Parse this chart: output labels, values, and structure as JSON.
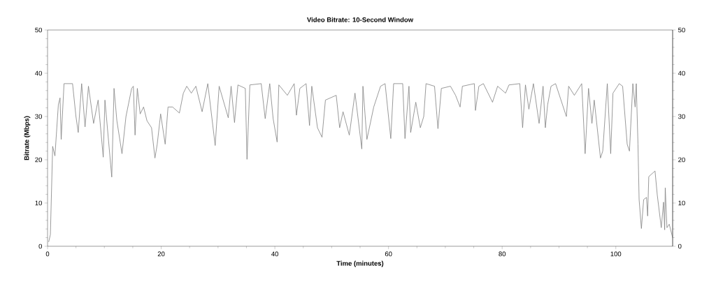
{
  "chart_data": {
    "type": "line",
    "title": "Video Bitrate: 10-Second Window",
    "xlabel": "Time (minutes)",
    "ylabel": "Bitrate (Mbps)",
    "xlim": [
      0,
      110
    ],
    "xticks": [
      0,
      20,
      40,
      60,
      80,
      100
    ],
    "ylim": [
      0,
      50
    ],
    "yticks": [
      0,
      10,
      20,
      30,
      40,
      50
    ],
    "y2lim": [
      0,
      50
    ],
    "y2ticks": [
      0,
      10,
      20,
      30,
      40,
      50
    ],
    "series": [
      {
        "color": "#808080",
        "x": [
          0.2,
          0.5,
          0.9,
          1.3,
          1.9,
          2.2,
          2.4,
          2.9,
          4.4,
          5.0,
          5.4,
          6.0,
          6.6,
          7.2,
          8.1,
          8.9,
          9.8,
          10.1,
          11.3,
          11.7,
          12.2,
          13.1,
          13.8,
          14.8,
          15.1,
          15.4,
          15.8,
          16.3,
          16.9,
          17.5,
          18.3,
          18.9,
          19.3,
          19.9,
          20.7,
          21.2,
          22.0,
          23.2,
          23.9,
          24.5,
          25.3,
          26.1,
          27.2,
          28.2,
          29.5,
          30.2,
          31.8,
          32.3,
          32.9,
          33.5,
          34.8,
          35.1,
          35.6,
          37.6,
          38.3,
          39.1,
          39.7,
          40.4,
          40.7,
          42.2,
          43.4,
          43.8,
          44.4,
          45.5,
          46.1,
          46.5,
          47.5,
          48.3,
          48.9,
          50.8,
          51.4,
          52.0,
          53.1,
          54.1,
          55.3,
          55.5,
          56.2,
          57.4,
          58.6,
          59.4,
          60.4,
          60.9,
          62.5,
          62.9,
          63.6,
          63.9,
          64.8,
          65.6,
          66.2,
          66.6,
          68.1,
          68.7,
          69.3,
          70.9,
          71.8,
          72.6,
          73.0,
          75.1,
          75.3,
          75.9,
          76.7,
          78.3,
          79.2,
          80.6,
          81.2,
          83.1,
          83.6,
          84.1,
          84.7,
          85.5,
          86.5,
          87.2,
          87.6,
          88.0,
          88.6,
          89.4,
          91.3,
          91.7,
          92.7,
          94.0,
          94.6,
          95.2,
          95.8,
          96.2,
          97.3,
          97.7,
          98.5,
          99.1,
          99.5,
          100.6,
          101.2,
          102.0,
          102.4,
          103.0,
          103.4,
          103.6,
          103.9,
          104.1,
          104.5,
          104.9,
          105.4,
          105.6,
          105.8,
          106.9,
          107.3,
          108.0,
          108.4,
          108.6,
          108.7,
          109.0,
          109.4,
          110.0
        ],
        "values": [
          1.0,
          2.7,
          23.1,
          20.9,
          32.7,
          34.3,
          24.7,
          37.6,
          37.6,
          30.0,
          26.3,
          37.6,
          27.6,
          37.0,
          28.4,
          33.8,
          20.6,
          33.8,
          16.0,
          36.5,
          29.0,
          21.4,
          30.0,
          36.5,
          37.0,
          25.7,
          36.5,
          30.6,
          32.2,
          29.0,
          27.4,
          20.4,
          23.6,
          30.6,
          23.6,
          32.2,
          32.2,
          30.8,
          35.4,
          37.0,
          35.4,
          37.0,
          31.1,
          37.6,
          23.3,
          37.0,
          29.7,
          37.0,
          28.6,
          37.3,
          36.5,
          20.1,
          37.3,
          37.6,
          29.5,
          37.6,
          29.5,
          24.1,
          37.3,
          34.9,
          37.6,
          30.3,
          36.5,
          37.6,
          27.9,
          37.0,
          27.4,
          25.2,
          33.8,
          34.9,
          27.4,
          31.1,
          25.7,
          35.4,
          22.5,
          37.0,
          24.7,
          32.2,
          37.0,
          37.6,
          24.9,
          37.6,
          37.6,
          24.9,
          37.0,
          26.3,
          33.3,
          27.4,
          30.0,
          37.6,
          37.0,
          27.2,
          36.5,
          37.0,
          34.9,
          32.2,
          37.0,
          37.6,
          31.4,
          37.0,
          37.6,
          33.3,
          37.0,
          35.4,
          37.3,
          37.6,
          27.4,
          37.3,
          31.7,
          37.6,
          28.4,
          37.0,
          27.4,
          32.7,
          37.0,
          37.6,
          30.0,
          37.0,
          34.9,
          37.6,
          21.4,
          36.5,
          28.4,
          33.8,
          20.4,
          22.0,
          37.6,
          21.4,
          35.4,
          37.6,
          37.0,
          23.6,
          22.0,
          37.6,
          32.2,
          37.6,
          23.6,
          10.8,
          4.1,
          10.8,
          11.3,
          7.0,
          16.1,
          17.4,
          11.8,
          4.3,
          10.2,
          3.8,
          13.5,
          4.3,
          5.1,
          2.0
        ]
      }
    ]
  }
}
